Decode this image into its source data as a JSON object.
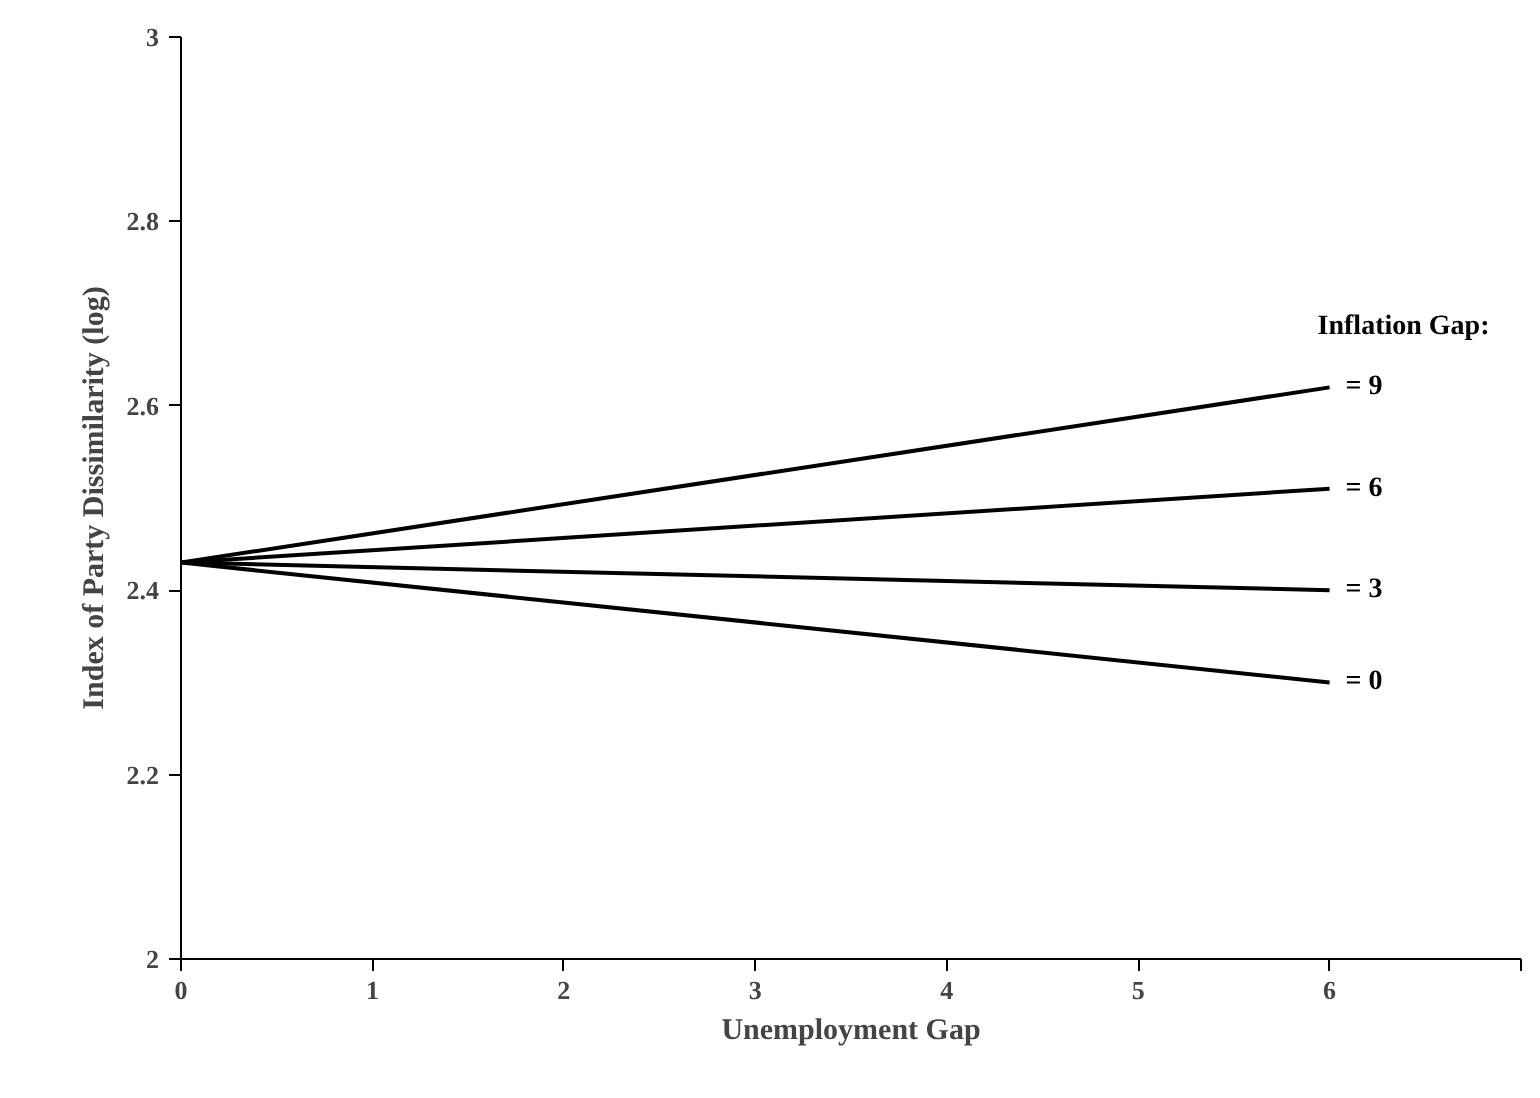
{
  "chart_data": {
    "type": "line",
    "xlabel": "Unemployment Gap",
    "ylabel": "Index of Party Dissimilarity (log)",
    "legend_title": "Inflation Gap:",
    "x": [
      0,
      6
    ],
    "xlim": [
      0,
      7
    ],
    "xticks": [
      0,
      1,
      2,
      3,
      4,
      5,
      6,
      {
        "value": 7,
        "label": null
      }
    ],
    "ylim": [
      2,
      3
    ],
    "yticks": [
      2,
      2.2,
      2.4,
      2.6,
      2.8,
      3
    ],
    "grid": false,
    "legend": false,
    "marker": "none",
    "line_style": "solid",
    "series": [
      {
        "name": "= 9",
        "color": "#000000",
        "values": [
          2.43,
          2.62
        ]
      },
      {
        "name": "= 6",
        "color": "#000000",
        "values": [
          2.43,
          2.51
        ]
      },
      {
        "name": "= 3",
        "color": "#000000",
        "values": [
          2.43,
          2.4
        ]
      },
      {
        "name": "= 0",
        "color": "#000000",
        "values": [
          2.43,
          2.3
        ]
      }
    ]
  }
}
